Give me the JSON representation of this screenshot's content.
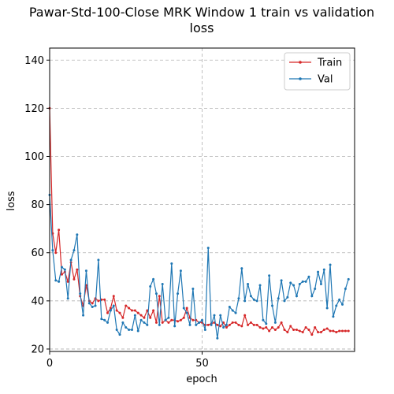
{
  "chart_data": {
    "type": "line",
    "title_line1": "Pawar-Std-100-Close MRK Window 1 train vs validation",
    "title_line2": "loss",
    "xlabel": "epoch",
    "ylabel": "loss",
    "xlim": [
      0,
      100
    ],
    "ylim": [
      19,
      145
    ],
    "xticks": [
      0,
      50
    ],
    "yticks": [
      20,
      40,
      60,
      80,
      100,
      120,
      140
    ],
    "grid": true,
    "legend_position": "top-right",
    "series": [
      {
        "name": "Train",
        "color": "#d62728",
        "values": [
          120,
          68,
          60,
          69.5,
          51,
          52,
          48,
          56,
          49,
          53,
          42,
          38,
          46.5,
          40,
          39,
          41,
          40,
          40.5,
          40.5,
          35,
          37,
          42,
          36,
          35,
          33,
          38,
          37,
          36,
          36,
          35,
          34,
          33,
          36,
          33,
          36,
          31,
          42,
          31,
          32,
          31,
          32,
          32,
          31.5,
          32,
          33,
          37,
          33,
          32,
          32,
          31,
          31,
          30,
          30,
          30.5,
          31,
          30,
          29.5,
          31,
          29,
          30,
          31,
          31,
          30,
          29.5,
          34,
          30,
          31,
          30,
          30,
          29,
          28.5,
          29,
          27.5,
          29,
          28,
          29,
          31,
          28,
          27,
          29.5,
          28,
          28,
          27.5,
          27,
          29,
          28,
          26,
          29,
          27,
          27,
          28,
          28.5,
          27.5,
          27.5,
          27,
          27.5,
          27.5,
          27.5,
          27.5
        ]
      },
      {
        "name": "Val",
        "color": "#1f77b4",
        "values": [
          84,
          61,
          48.5,
          48,
          54,
          53,
          41,
          57,
          61,
          67.5,
          43,
          34,
          52.5,
          39,
          37.5,
          38,
          57,
          32.5,
          32,
          31,
          36,
          38,
          28,
          26,
          31,
          29,
          28,
          28,
          34,
          27.5,
          32,
          31,
          30,
          46,
          49,
          43,
          30,
          47,
          32,
          33,
          55.5,
          29.5,
          43,
          52.5,
          37,
          35,
          30,
          45,
          30,
          31,
          32,
          28,
          62,
          30,
          34,
          24.5,
          34,
          29,
          30,
          37.5,
          36,
          35,
          41,
          53.5,
          40,
          47,
          42,
          40.5,
          40,
          46.5,
          32,
          30.5,
          50.5,
          38,
          31,
          41,
          48.5,
          40,
          41.5,
          47.5,
          46.5,
          42,
          47,
          48,
          48,
          50,
          42,
          45,
          52,
          47,
          53,
          37,
          55,
          33.5,
          38,
          40.5,
          38.5,
          45,
          49
        ]
      }
    ]
  }
}
